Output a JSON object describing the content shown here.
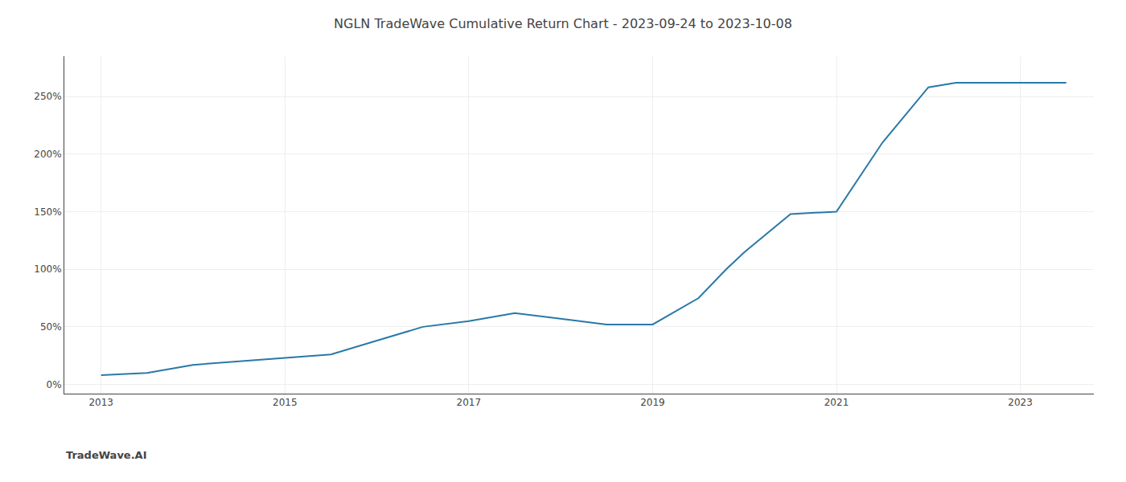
{
  "chart_data": {
    "type": "line",
    "title": "NGLN TradeWave Cumulative Return Chart - 2023-09-24 to 2023-10-08",
    "annotations": [
      "TradeWave.AI"
    ],
    "x": [
      2013.0,
      2013.5,
      2014.0,
      2014.5,
      2015.0,
      2015.5,
      2016.0,
      2016.5,
      2017.0,
      2017.5,
      2018.0,
      2018.5,
      2018.8,
      2019.0,
      2019.5,
      2019.8,
      2020.0,
      2020.5,
      2021.0,
      2021.5,
      2022.0,
      2022.3,
      2022.5,
      2023.0,
      2023.5
    ],
    "values": [
      8,
      10,
      17,
      20,
      23,
      26,
      38,
      50,
      55,
      62,
      57,
      52,
      52,
      52,
      75,
      100,
      115,
      148,
      150,
      210,
      258,
      262,
      262,
      262,
      262
    ],
    "color": "#2979a8",
    "xlim": [
      2012.6,
      2023.8
    ],
    "ylim": [
      -8,
      285
    ],
    "xticks": [
      2013,
      2015,
      2017,
      2019,
      2021,
      2023
    ],
    "yticks": [
      {
        "value": 0,
        "label": "0%"
      },
      {
        "value": 50,
        "label": "50%"
      },
      {
        "value": 100,
        "label": "100%"
      },
      {
        "value": 150,
        "label": "150%"
      },
      {
        "value": 200,
        "label": "200%"
      },
      {
        "value": 250,
        "label": "250%"
      }
    ],
    "grid": true
  }
}
